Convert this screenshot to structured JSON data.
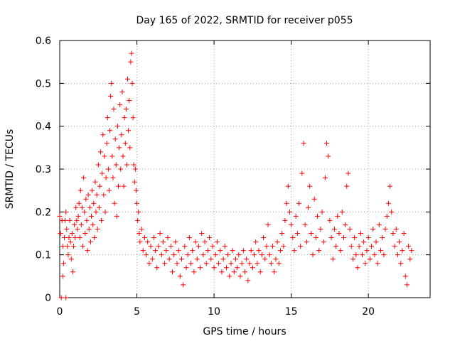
{
  "chart_data": {
    "type": "scatter",
    "title": "Day 165 of 2022, SRMTID for receiver p055",
    "xlabel": "GPS time / hours",
    "ylabel": "SRMTID / TECUs",
    "xlim": [
      0,
      24
    ],
    "ylim": [
      0,
      0.6
    ],
    "xticks": [
      0,
      5,
      10,
      15,
      20
    ],
    "xtick_labels": [
      "0",
      "5",
      "10",
      "15",
      "20"
    ],
    "yticks": [
      0,
      0.1,
      0.2,
      0.3,
      0.4,
      0.5,
      0.6
    ],
    "ytick_labels": [
      "0",
      "0.1",
      "0.2",
      "0.3",
      "0.4",
      "0.5",
      "0.6"
    ],
    "grid": true,
    "marker": "+",
    "color": "#ff0000",
    "series": [
      {
        "name": "SRMTID",
        "points": [
          [
            0.0,
            0.19
          ],
          [
            0.05,
            0.15
          ],
          [
            0.1,
            0.0
          ],
          [
            0.15,
            0.18
          ],
          [
            0.2,
            0.12
          ],
          [
            0.2,
            0.05
          ],
          [
            0.25,
            0.08
          ],
          [
            0.3,
            0.14
          ],
          [
            0.35,
            0.18
          ],
          [
            0.4,
            0.0
          ],
          [
            0.4,
            0.2
          ],
          [
            0.45,
            0.16
          ],
          [
            0.5,
            0.12
          ],
          [
            0.55,
            0.1
          ],
          [
            0.6,
            0.14
          ],
          [
            0.65,
            0.18
          ],
          [
            0.7,
            0.13
          ],
          [
            0.75,
            0.09
          ],
          [
            0.8,
            0.15
          ],
          [
            0.85,
            0.06
          ],
          [
            0.9,
            0.12
          ],
          [
            0.95,
            0.17
          ],
          [
            1.0,
            0.14
          ],
          [
            1.05,
            0.21
          ],
          [
            1.1,
            0.18
          ],
          [
            1.15,
            0.16
          ],
          [
            1.2,
            0.19
          ],
          [
            1.25,
            0.22
          ],
          [
            1.3,
            0.14
          ],
          [
            1.35,
            0.25
          ],
          [
            1.4,
            0.17
          ],
          [
            1.45,
            0.21
          ],
          [
            1.5,
            0.12
          ],
          [
            1.55,
            0.28
          ],
          [
            1.6,
            0.2
          ],
          [
            1.65,
            0.15
          ],
          [
            1.7,
            0.23
          ],
          [
            1.75,
            0.18
          ],
          [
            1.8,
            0.11
          ],
          [
            1.85,
            0.24
          ],
          [
            1.9,
            0.16
          ],
          [
            1.95,
            0.21
          ],
          [
            2.0,
            0.13
          ],
          [
            2.05,
            0.19
          ],
          [
            2.1,
            0.25
          ],
          [
            2.15,
            0.17
          ],
          [
            2.2,
            0.22
          ],
          [
            2.25,
            0.14
          ],
          [
            2.3,
            0.27
          ],
          [
            2.35,
            0.2
          ],
          [
            2.4,
            0.24
          ],
          [
            2.45,
            0.16
          ],
          [
            2.5,
            0.31
          ],
          [
            2.55,
            0.21
          ],
          [
            2.6,
            0.26
          ],
          [
            2.65,
            0.34
          ],
          [
            2.7,
            0.18
          ],
          [
            2.75,
            0.29
          ],
          [
            2.8,
            0.38
          ],
          [
            2.85,
            0.24
          ],
          [
            2.9,
            0.33
          ],
          [
            2.95,
            0.2
          ],
          [
            3.0,
            0.28
          ],
          [
            3.05,
            0.36
          ],
          [
            3.1,
            0.42
          ],
          [
            3.15,
            0.3
          ],
          [
            3.2,
            0.25
          ],
          [
            3.25,
            0.39
          ],
          [
            3.3,
            0.47
          ],
          [
            3.35,
            0.5
          ],
          [
            3.4,
            0.33
          ],
          [
            3.45,
            0.28
          ],
          [
            3.5,
            0.44
          ],
          [
            3.55,
            0.22
          ],
          [
            3.6,
            0.37
          ],
          [
            3.65,
            0.31
          ],
          [
            3.7,
            0.19
          ],
          [
            3.75,
            0.4
          ],
          [
            3.8,
            0.26
          ],
          [
            3.85,
            0.35
          ],
          [
            3.9,
            0.45
          ],
          [
            3.95,
            0.3
          ],
          [
            4.0,
            0.38
          ],
          [
            4.05,
            0.48
          ],
          [
            4.1,
            0.33
          ],
          [
            4.15,
            0.26
          ],
          [
            4.2,
            0.42
          ],
          [
            4.25,
            0.36
          ],
          [
            4.3,
            0.44
          ],
          [
            4.35,
            0.31
          ],
          [
            4.4,
            0.51
          ],
          [
            4.45,
            0.39
          ],
          [
            4.5,
            0.46
          ],
          [
            4.55,
            0.35
          ],
          [
            4.6,
            0.55
          ],
          [
            4.65,
            0.57
          ],
          [
            4.7,
            0.5
          ],
          [
            4.75,
            0.42
          ],
          [
            4.8,
            0.31
          ],
          [
            4.85,
            0.27
          ],
          [
            4.9,
            0.3
          ],
          [
            4.95,
            0.25
          ],
          [
            5.0,
            0.22
          ],
          [
            5.05,
            0.18
          ],
          [
            5.1,
            0.2
          ],
          [
            5.15,
            0.15
          ],
          [
            5.2,
            0.13
          ],
          [
            5.3,
            0.16
          ],
          [
            5.4,
            0.11
          ],
          [
            5.5,
            0.14
          ],
          [
            5.6,
            0.1
          ],
          [
            5.7,
            0.13
          ],
          [
            5.8,
            0.08
          ],
          [
            5.9,
            0.12
          ],
          [
            6.0,
            0.09
          ],
          [
            6.1,
            0.14
          ],
          [
            6.2,
            0.11
          ],
          [
            6.3,
            0.07
          ],
          [
            6.4,
            0.12
          ],
          [
            6.5,
            0.15
          ],
          [
            6.6,
            0.1
          ],
          [
            6.7,
            0.13
          ],
          [
            6.8,
            0.08
          ],
          [
            6.9,
            0.11
          ],
          [
            7.0,
            0.14
          ],
          [
            7.1,
            0.09
          ],
          [
            7.2,
            0.12
          ],
          [
            7.3,
            0.06
          ],
          [
            7.4,
            0.1
          ],
          [
            7.5,
            0.13
          ],
          [
            7.6,
            0.08
          ],
          [
            7.7,
            0.11
          ],
          [
            7.8,
            0.05
          ],
          [
            7.9,
            0.09
          ],
          [
            8.0,
            0.03
          ],
          [
            8.1,
            0.12
          ],
          [
            8.2,
            0.07
          ],
          [
            8.3,
            0.1
          ],
          [
            8.4,
            0.14
          ],
          [
            8.5,
            0.08
          ],
          [
            8.6,
            0.11
          ],
          [
            8.7,
            0.06
          ],
          [
            8.8,
            0.13
          ],
          [
            8.9,
            0.09
          ],
          [
            9.0,
            0.12
          ],
          [
            9.1,
            0.07
          ],
          [
            9.2,
            0.15
          ],
          [
            9.3,
            0.1
          ],
          [
            9.4,
            0.13
          ],
          [
            9.5,
            0.08
          ],
          [
            9.6,
            0.11
          ],
          [
            9.7,
            0.14
          ],
          [
            9.8,
            0.09
          ],
          [
            9.9,
            0.12
          ],
          [
            10.0,
            0.07
          ],
          [
            10.1,
            0.1
          ],
          [
            10.2,
            0.13
          ],
          [
            10.3,
            0.08
          ],
          [
            10.4,
            0.11
          ],
          [
            10.5,
            0.06
          ],
          [
            10.6,
            0.09
          ],
          [
            10.7,
            0.12
          ],
          [
            10.8,
            0.07
          ],
          [
            10.9,
            0.1
          ],
          [
            11.0,
            0.05
          ],
          [
            11.1,
            0.08
          ],
          [
            11.2,
            0.11
          ],
          [
            11.3,
            0.06
          ],
          [
            11.4,
            0.09
          ],
          [
            11.5,
            0.07
          ],
          [
            11.6,
            0.1
          ],
          [
            11.7,
            0.05
          ],
          [
            11.8,
            0.08
          ],
          [
            11.9,
            0.11
          ],
          [
            12.0,
            0.06
          ],
          [
            12.1,
            0.09
          ],
          [
            12.2,
            0.04
          ],
          [
            12.3,
            0.08
          ],
          [
            12.4,
            0.11
          ],
          [
            12.5,
            0.07
          ],
          [
            12.6,
            0.1
          ],
          [
            12.7,
            0.13
          ],
          [
            12.8,
            0.08
          ],
          [
            12.9,
            0.11
          ],
          [
            13.0,
            0.06
          ],
          [
            13.1,
            0.1
          ],
          [
            13.2,
            0.14
          ],
          [
            13.3,
            0.09
          ],
          [
            13.4,
            0.12
          ],
          [
            13.5,
            0.17
          ],
          [
            13.6,
            0.1
          ],
          [
            13.7,
            0.08
          ],
          [
            13.8,
            0.12
          ],
          [
            13.9,
            0.06
          ],
          [
            14.0,
            0.09
          ],
          [
            14.1,
            0.13
          ],
          [
            14.2,
            0.08
          ],
          [
            14.3,
            0.11
          ],
          [
            14.4,
            0.15
          ],
          [
            14.5,
            0.12
          ],
          [
            14.6,
            0.18
          ],
          [
            14.7,
            0.22
          ],
          [
            14.8,
            0.26
          ],
          [
            14.9,
            0.2
          ],
          [
            15.0,
            0.17
          ],
          [
            15.1,
            0.14
          ],
          [
            15.2,
            0.11
          ],
          [
            15.3,
            0.19
          ],
          [
            15.4,
            0.15
          ],
          [
            15.5,
            0.22
          ],
          [
            15.6,
            0.12
          ],
          [
            15.7,
            0.29
          ],
          [
            15.8,
            0.36
          ],
          [
            15.9,
            0.17
          ],
          [
            16.0,
            0.13
          ],
          [
            16.1,
            0.21
          ],
          [
            16.2,
            0.26
          ],
          [
            16.3,
            0.15
          ],
          [
            16.4,
            0.1
          ],
          [
            16.5,
            0.23
          ],
          [
            16.6,
            0.14
          ],
          [
            16.7,
            0.19
          ],
          [
            16.8,
            0.11
          ],
          [
            16.9,
            0.16
          ],
          [
            17.0,
            0.2
          ],
          [
            17.1,
            0.13
          ],
          [
            17.2,
            0.28
          ],
          [
            17.3,
            0.36
          ],
          [
            17.4,
            0.33
          ],
          [
            17.5,
            0.18
          ],
          [
            17.6,
            0.14
          ],
          [
            17.7,
            0.09
          ],
          [
            17.8,
            0.16
          ],
          [
            17.9,
            0.12
          ],
          [
            18.0,
            0.19
          ],
          [
            18.1,
            0.15
          ],
          [
            18.2,
            0.11
          ],
          [
            18.3,
            0.2
          ],
          [
            18.4,
            0.14
          ],
          [
            18.5,
            0.17
          ],
          [
            18.6,
            0.26
          ],
          [
            18.7,
            0.29
          ],
          [
            18.8,
            0.16
          ],
          [
            18.9,
            0.12
          ],
          [
            19.0,
            0.09
          ],
          [
            19.1,
            0.14
          ],
          [
            19.2,
            0.1
          ],
          [
            19.3,
            0.07
          ],
          [
            19.4,
            0.12
          ],
          [
            19.5,
            0.15
          ],
          [
            19.6,
            0.1
          ],
          [
            19.7,
            0.13
          ],
          [
            19.8,
            0.08
          ],
          [
            19.9,
            0.11
          ],
          [
            20.0,
            0.14
          ],
          [
            20.1,
            0.09
          ],
          [
            20.2,
            0.12
          ],
          [
            20.3,
            0.16
          ],
          [
            20.4,
            0.1
          ],
          [
            20.5,
            0.13
          ],
          [
            20.6,
            0.08
          ],
          [
            20.7,
            0.17
          ],
          [
            20.8,
            0.11
          ],
          [
            20.9,
            0.14
          ],
          [
            21.0,
            0.1
          ],
          [
            21.1,
            0.16
          ],
          [
            21.2,
            0.19
          ],
          [
            21.3,
            0.22
          ],
          [
            21.4,
            0.26
          ],
          [
            21.5,
            0.2
          ],
          [
            21.6,
            0.15
          ],
          [
            21.7,
            0.12
          ],
          [
            21.8,
            0.16
          ],
          [
            21.9,
            0.1
          ],
          [
            22.0,
            0.13
          ],
          [
            22.1,
            0.08
          ],
          [
            22.2,
            0.11
          ],
          [
            22.3,
            0.15
          ],
          [
            22.4,
            0.05
          ],
          [
            22.5,
            0.03
          ],
          [
            22.6,
            0.12
          ],
          [
            22.7,
            0.09
          ],
          [
            22.8,
            0.11
          ]
        ]
      }
    ]
  }
}
